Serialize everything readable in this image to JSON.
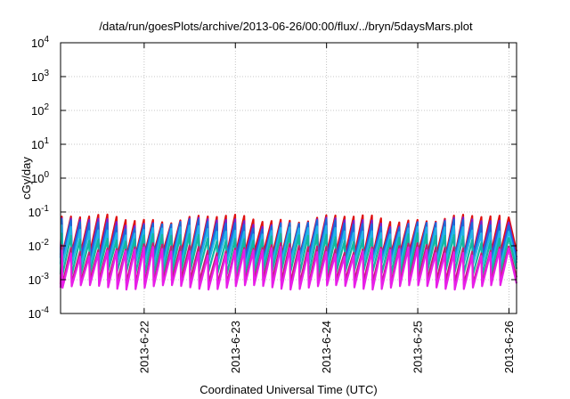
{
  "chart_data": {
    "type": "line",
    "title": "/data/run/goesPlots/archive/2013-06-26/00:00/flux/../bryn/5daysMars.plot",
    "xlabel": "Coordinated Universal Time (UTC)",
    "ylabel": "cGy/day",
    "xaxis": "time",
    "xlim": [
      "2013-06-21T02:00",
      "2013-06-26T02:00"
    ],
    "x_ticks": [
      {
        "date": "2013-06-22T00:00",
        "label": "2013-6-22"
      },
      {
        "date": "2013-06-23T00:00",
        "label": "2013-6-23"
      },
      {
        "date": "2013-06-24T00:00",
        "label": "2013-6-24"
      },
      {
        "date": "2013-06-25T00:00",
        "label": "2013-6-25"
      },
      {
        "date": "2013-06-26T00:00",
        "label": "2013-6-26"
      }
    ],
    "y_scale": "log",
    "ylim": [
      0.0001,
      10000
    ],
    "y_ticks": [
      {
        "value": 0.0001,
        "base": "10",
        "exp": "-4"
      },
      {
        "value": 0.001,
        "base": "10",
        "exp": "-3"
      },
      {
        "value": 0.01,
        "base": "10",
        "exp": "-2"
      },
      {
        "value": 0.1,
        "base": "10",
        "exp": "-1"
      },
      {
        "value": 1,
        "base": "10",
        "exp": "0"
      },
      {
        "value": 10,
        "base": "10",
        "exp": "1"
      },
      {
        "value": 100,
        "base": "10",
        "exp": "2"
      },
      {
        "value": 1000,
        "base": "10",
        "exp": "3"
      },
      {
        "value": 10000,
        "base": "10",
        "exp": "4"
      }
    ],
    "grid": true,
    "pattern": {
      "description": "sawtooth: sharp rise to peak every cycle, slow decay to trough",
      "first_peak": "2013-06-21T02:20",
      "period_hours": 2.4
    },
    "series": [
      {
        "color": "#e01010",
        "peak": 0.065,
        "trough": 0.0055
      },
      {
        "color": "#7a1fd0",
        "peak": 0.052,
        "trough": 0.0042
      },
      {
        "color": "#1a6ad8",
        "peak": 0.045,
        "trough": 0.0038
      },
      {
        "color": "#22b4e8",
        "peak": 0.03,
        "trough": 0.0028
      },
      {
        "color": "#12b8a0",
        "peak": 0.018,
        "trough": 0.0016
      },
      {
        "color": "#c02070",
        "peak": 0.009,
        "trough": 0.00085
      },
      {
        "color": "#e81ee8",
        "peak": 0.007,
        "trough": 0.0006
      }
    ]
  }
}
